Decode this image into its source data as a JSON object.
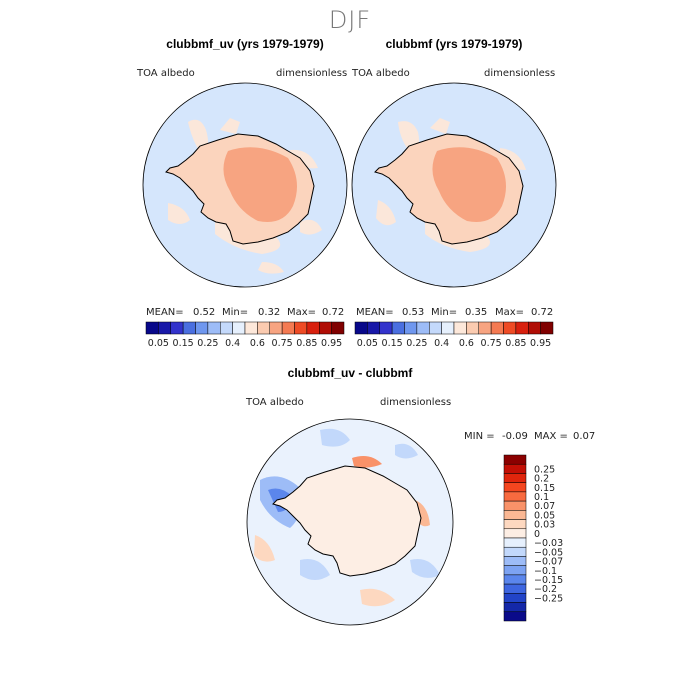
{
  "suptitle": "DJF",
  "panels": [
    {
      "title": "clubbmf_uv (yrs 1979-1979)",
      "left_label": "TOA albedo",
      "right_label": "dimensionless",
      "mean_label": "MEAN=",
      "mean_value": "0.52",
      "min_label": "Min=",
      "min_value": "0.32",
      "max_label": "Max=",
      "max_value": "0.72"
    },
    {
      "title": "clubbmf (yrs 1979-1979)",
      "left_label": "TOA albedo",
      "right_label": "dimensionless",
      "mean_label": "MEAN=",
      "mean_value": "0.53",
      "min_label": "Min=",
      "min_value": "0.35",
      "max_label": "Max=",
      "max_value": "0.72"
    }
  ],
  "diff_panel": {
    "title": "clubbmf_uv - clubbmf",
    "left_label": "TOA albedo",
    "right_label": "dimensionless",
    "min_label": "MIN =",
    "min_value": "-0.09",
    "max_label": "MAX =",
    "max_value": "0.07"
  },
  "colorbar_top": {
    "labels": [
      "0.05",
      "0.15",
      "0.25",
      "0.4",
      "0.6",
      "0.75",
      "0.85",
      "0.95"
    ],
    "colors": [
      "#08088a",
      "#1818a8",
      "#3333cc",
      "#4a6fe0",
      "#6f97ef",
      "#9dbcf7",
      "#c4d9fb",
      "#e6f0fd",
      "#fde8da",
      "#fbcbb0",
      "#f7a481",
      "#f47a52",
      "#ee4b25",
      "#d8200e",
      "#b00d05",
      "#800000"
    ]
  },
  "colorbar_diff": {
    "labels": [
      "0.25",
      "0.2",
      "0.15",
      "0.1",
      "0.07",
      "0.05",
      "0.03",
      "0",
      "-0.03",
      "-0.05",
      "-0.07",
      "-0.1",
      "-0.15",
      "-0.2",
      "-0.25"
    ],
    "colors": [
      "#8b0000",
      "#c30f05",
      "#e0250c",
      "#f4461f",
      "#f86a3f",
      "#f99269",
      "#fbb894",
      "#fdd8c0",
      "#fdeee4",
      "#e6f0fd",
      "#c2d8fb",
      "#9dbcf7",
      "#7da3f2",
      "#5b86ec",
      "#3e66e0",
      "#2244c8",
      "#1428a8",
      "#0a0a8a"
    ]
  },
  "chart_data": [
    {
      "type": "heatmap",
      "title": "clubbmf_uv (yrs 1979-1979)",
      "variable": "TOA albedo",
      "units": "dimensionless",
      "season": "DJF",
      "mean": 0.52,
      "min": 0.32,
      "max": 0.72,
      "contour_levels": [
        0.05,
        0.15,
        0.25,
        0.4,
        0.6,
        0.75,
        0.85,
        0.95
      ]
    },
    {
      "type": "heatmap",
      "title": "clubbmf (yrs 1979-1979)",
      "variable": "TOA albedo",
      "units": "dimensionless",
      "season": "DJF",
      "mean": 0.53,
      "min": 0.35,
      "max": 0.72,
      "contour_levels": [
        0.05,
        0.15,
        0.25,
        0.4,
        0.6,
        0.75,
        0.85,
        0.95
      ]
    },
    {
      "type": "heatmap",
      "title": "clubbmf_uv - clubbmf",
      "variable": "TOA albedo",
      "units": "dimensionless",
      "min": -0.09,
      "max": 0.07,
      "contour_levels": [
        -0.25,
        -0.2,
        -0.15,
        -0.1,
        -0.07,
        -0.05,
        -0.03,
        0,
        0.03,
        0.05,
        0.07,
        0.1,
        0.15,
        0.2,
        0.25
      ]
    }
  ]
}
